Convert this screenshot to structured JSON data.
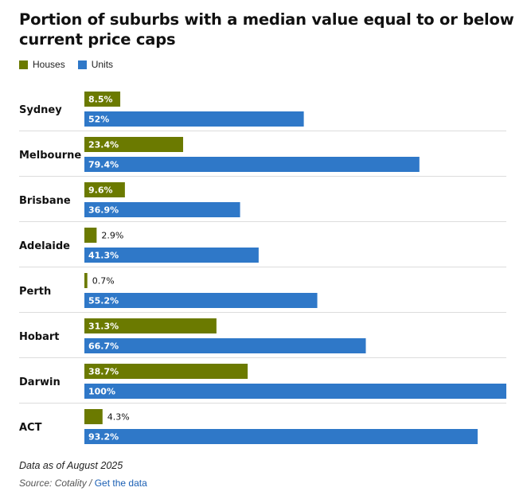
{
  "chart_data": {
    "type": "bar",
    "orientation": "horizontal",
    "title": "Portion of suburbs with a median value equal to or below current price caps",
    "categories": [
      "Sydney",
      "Melbourne",
      "Brisbane",
      "Adelaide",
      "Perth",
      "Hobart",
      "Darwin",
      "ACT"
    ],
    "series": [
      {
        "name": "Houses",
        "color": "#6b7a00",
        "values": [
          8.5,
          23.4,
          9.6,
          2.9,
          0.7,
          31.3,
          38.7,
          4.3
        ],
        "labels": [
          "8.5%",
          "23.4%",
          "9.6%",
          "2.9%",
          "0.7%",
          "31.3%",
          "38.7%",
          "4.3%"
        ]
      },
      {
        "name": "Units",
        "color": "#2f78c8",
        "values": [
          52,
          79.4,
          36.9,
          41.3,
          55.2,
          66.7,
          100,
          93.2
        ],
        "labels": [
          "52%",
          "79.4%",
          "36.9%",
          "41.3%",
          "55.2%",
          "66.7%",
          "100%",
          "93.2%"
        ]
      }
    ],
    "xlim": [
      0,
      100
    ],
    "legend_position": "top-left",
    "grid": false
  },
  "footnote": "Data as of August 2025",
  "source": {
    "label": "Source: Cotality",
    "separator": " / ",
    "link_text": "Get the data"
  }
}
